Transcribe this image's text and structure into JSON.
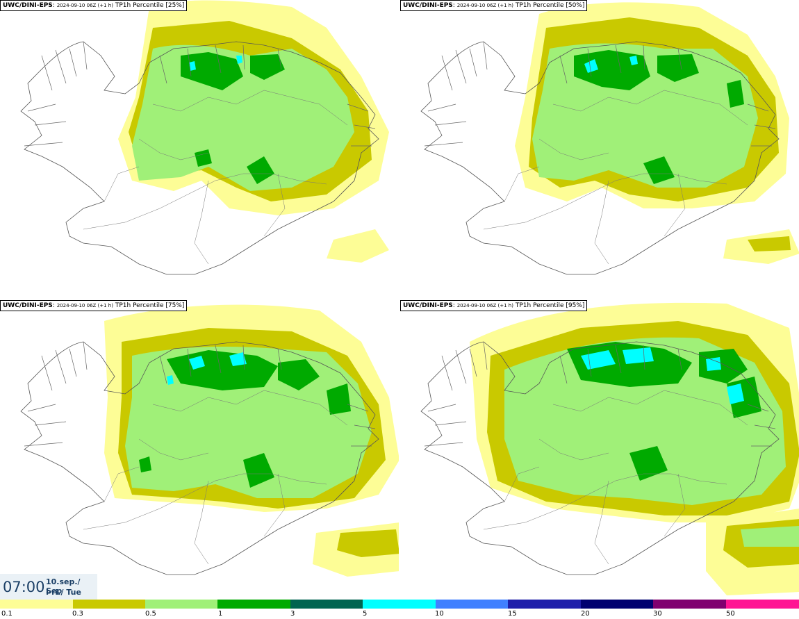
{
  "panels": [
    {
      "model": "UWC/DINI-EPS",
      "meta": "2024-09-10 06Z (+1 h)",
      "title": "TP1h Percentile [25%]"
    },
    {
      "model": "UWC/DINI-EPS",
      "meta": "2024-09-10 06Z (+1 h)",
      "title": "TP1h Percentile [50%]"
    },
    {
      "model": "UWC/DINI-EPS",
      "meta": "2024-09-10 06Z (+1 h)",
      "title": "TP1h Percentile [75%]"
    },
    {
      "model": "UWC/DINI-EPS",
      "meta": "2024-09-10 06Z (+1 h)",
      "title": "TP1h Percentile [95%]"
    }
  ],
  "time": {
    "hour": "07:00",
    "date": "10.sep./ Sep",
    "day": "Þri./ Tue"
  },
  "legend": {
    "colors": [
      "#fdfd96",
      "#c9c900",
      "#a0f078",
      "#00aa00",
      "#006450",
      "#00ffff",
      "#4080ff",
      "#1e1eaa",
      "#000070",
      "#800070",
      "#ff1493",
      "#ff0000"
    ],
    "labels": [
      "0.1",
      "0.3",
      "0.5",
      "1",
      "3",
      "5",
      "10",
      "15",
      "20",
      "30",
      "50"
    ]
  }
}
